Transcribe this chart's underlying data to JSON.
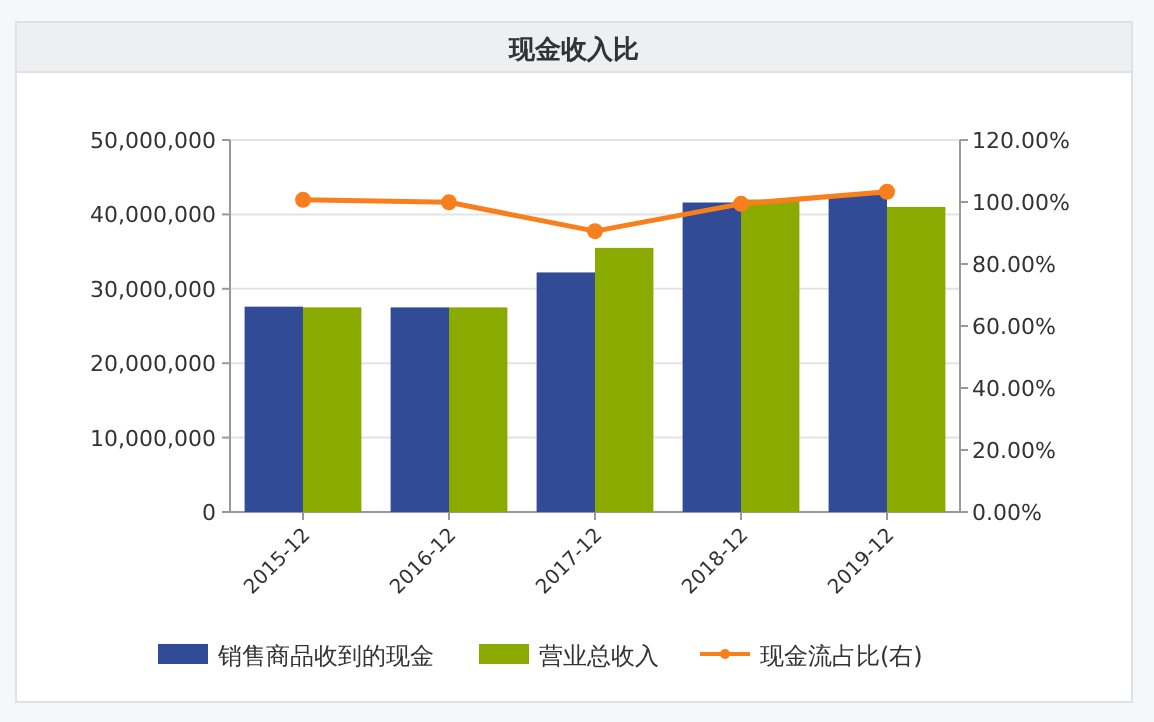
{
  "chart_data": {
    "type": "bar",
    "title": "现金收入比",
    "categories": [
      "2015-12",
      "2016-12",
      "2017-12",
      "2018-12",
      "2019-12"
    ],
    "series": [
      {
        "name": "销售商品收到的现金",
        "color": "#324b96",
        "values": [
          27600000,
          27500000,
          32200000,
          41600000,
          42600000
        ]
      },
      {
        "name": "营业总收入",
        "color": "#8aaa00",
        "values": [
          27500000,
          27500000,
          35500000,
          42000000,
          41000000
        ]
      },
      {
        "name": "现金流占比(右)",
        "type": "line",
        "axis": "y2",
        "color": "#f97f1d",
        "values": [
          100.7,
          99.9,
          90.6,
          99.4,
          103.3
        ]
      }
    ],
    "ylim": [
      0,
      50000000
    ],
    "yticks": [
      {
        "value": 0,
        "label": "0"
      },
      {
        "value": 10000000,
        "label": "10,000,000"
      },
      {
        "value": 20000000,
        "label": "20,000,000"
      },
      {
        "value": 30000000,
        "label": "30,000,000"
      },
      {
        "value": 40000000,
        "label": "40,000,000"
      },
      {
        "value": 50000000,
        "label": "50,000,000"
      }
    ],
    "y2lim": [
      0,
      120
    ],
    "y2ticks": [
      {
        "value": 0,
        "label": "0.00%"
      },
      {
        "value": 20,
        "label": "20.00%"
      },
      {
        "value": 40,
        "label": "40.00%"
      },
      {
        "value": 60,
        "label": "60.00%"
      },
      {
        "value": 80,
        "label": "80.00%"
      },
      {
        "value": 100,
        "label": "100.00%"
      },
      {
        "value": 120,
        "label": "120.00%"
      }
    ],
    "grid": "y",
    "legend": "bottom",
    "marker": "circle"
  }
}
